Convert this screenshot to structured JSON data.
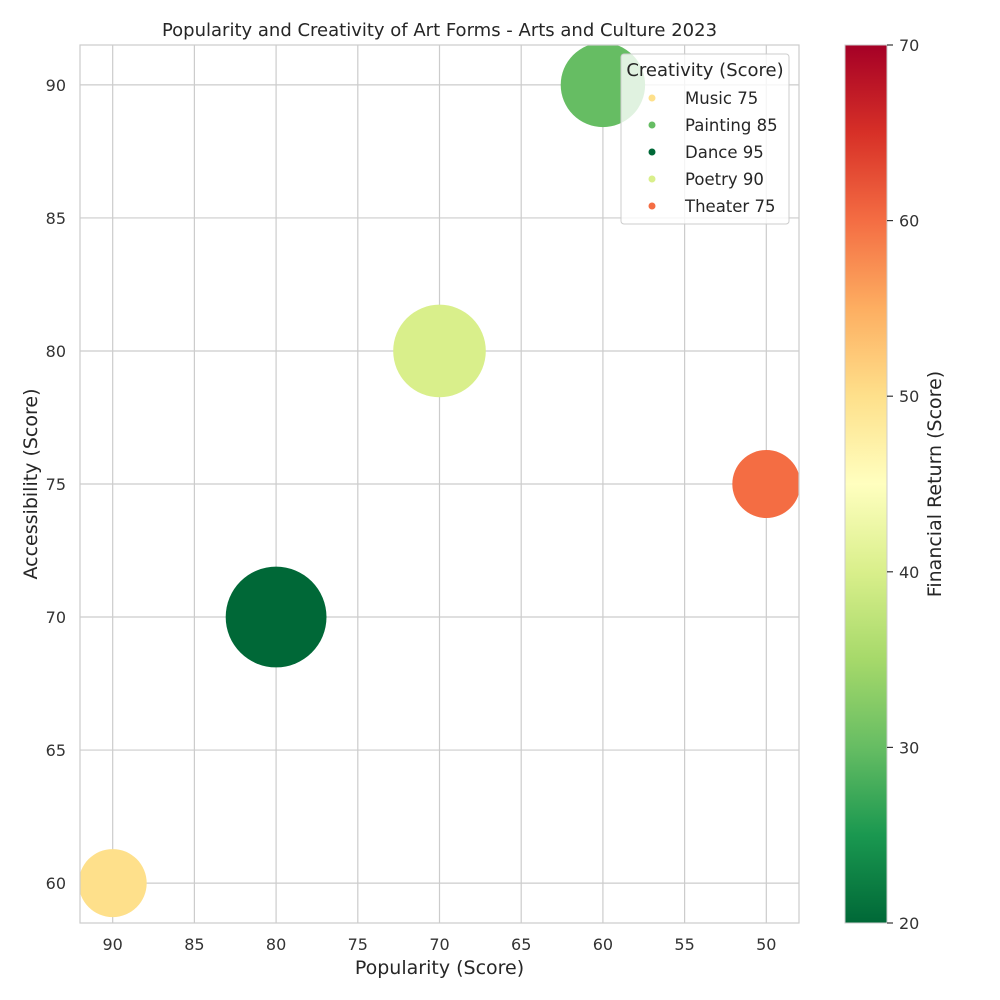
{
  "chart_data": {
    "type": "scatter",
    "title": "Popularity and Creativity of Art Forms - Arts and Culture 2023",
    "xlabel": "Popularity (Score)",
    "ylabel": "Accessibility (Score)",
    "x_inverted": true,
    "xlim": [
      92,
      48
    ],
    "ylim": [
      58.5,
      91.5
    ],
    "x_ticks": [
      90,
      85,
      80,
      75,
      70,
      65,
      60,
      55,
      50
    ],
    "y_ticks": [
      60,
      65,
      70,
      75,
      80,
      85,
      90
    ],
    "grid": true,
    "size_encoding": "Creativity (Score)",
    "color_encoding": "Financial Return (Score)",
    "points": [
      {
        "name": "Music",
        "x": 90,
        "y": 60,
        "creativity": 75,
        "financial_return": 50,
        "color": "#fee08b"
      },
      {
        "name": "Painting",
        "x": 60,
        "y": 90,
        "creativity": 85,
        "financial_return": 30,
        "color": "#66bd63"
      },
      {
        "name": "Dance",
        "x": 80,
        "y": 70,
        "creativity": 95,
        "financial_return": 20,
        "color": "#006837"
      },
      {
        "name": "Poetry",
        "x": 70,
        "y": 80,
        "creativity": 90,
        "financial_return": 40,
        "color": "#d9ef8b"
      },
      {
        "name": "Theater",
        "x": 50,
        "y": 75,
        "creativity": 75,
        "financial_return": 60,
        "color": "#f46d43"
      }
    ],
    "legend": {
      "title": "Creativity (Score)",
      "placement": "top-right",
      "entries": [
        "Music 75",
        "Painting 85",
        "Dance 95",
        "Poetry 90",
        "Theater 75"
      ]
    },
    "colorbar": {
      "label": "Financial Return (Score)",
      "range": [
        20,
        70
      ],
      "ticks": [
        20,
        30,
        40,
        50,
        60,
        70
      ],
      "colormap": "RdYlGn_r",
      "stops": [
        "#006837",
        "#1a9850",
        "#66bd63",
        "#a6d96a",
        "#d9ef8b",
        "#ffffbf",
        "#fee08b",
        "#fdae61",
        "#f46d43",
        "#d73027",
        "#a50026"
      ]
    }
  }
}
